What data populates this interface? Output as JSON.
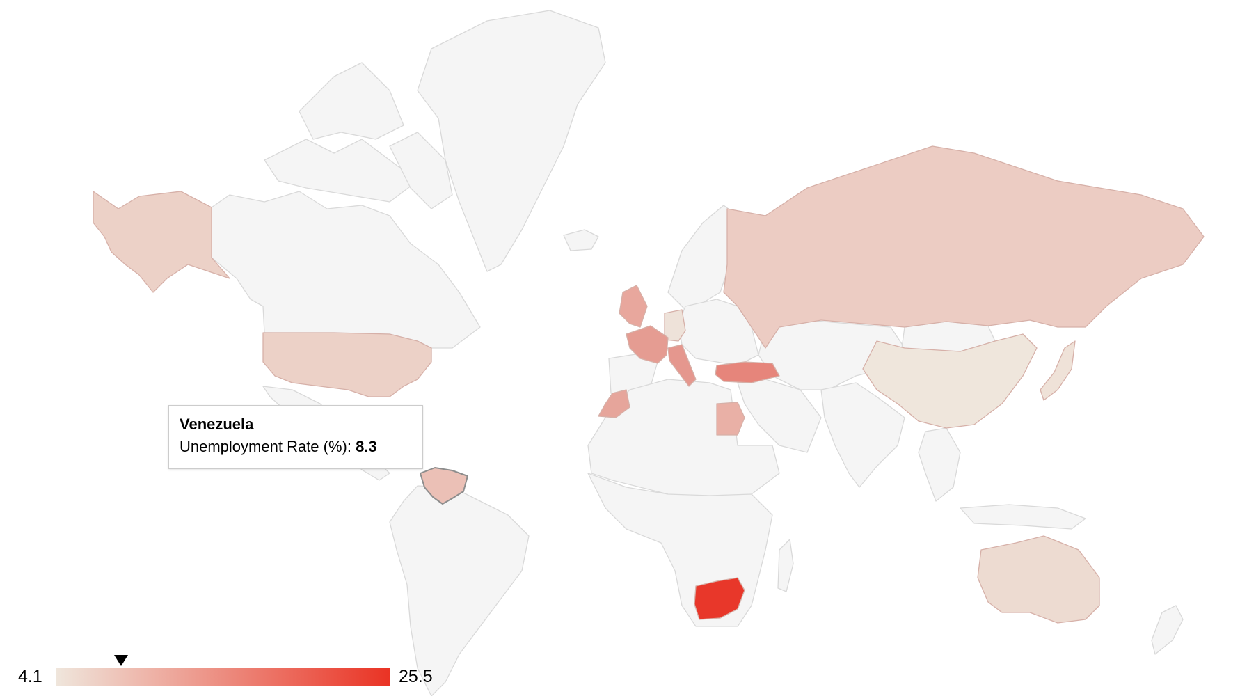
{
  "map": {
    "metric": "Unemployment Rate (%)",
    "no_data_color": "#f5f5f5",
    "border_color": "#d9d9d9",
    "color_min": "#efe6dc",
    "color_max": "#ea3324",
    "countries": [
      {
        "name": "South Africa",
        "color": "#e8372a"
      },
      {
        "name": "Turkey",
        "color": "#e6857b"
      },
      {
        "name": "Italy",
        "color": "#e5978e"
      },
      {
        "name": "France",
        "color": "#e59c92"
      },
      {
        "name": "Morocco",
        "color": "#e6a59b"
      },
      {
        "name": "Egypt",
        "color": "#e9b0a6"
      },
      {
        "name": "United Kingdom",
        "color": "#e8a79d"
      },
      {
        "name": "Venezuela",
        "color": "#ebc0b6"
      },
      {
        "name": "Russia",
        "color": "#ecccc3"
      },
      {
        "name": "United States",
        "color": "#ecd1c7"
      },
      {
        "name": "Alaska",
        "color": "#ecd1c7"
      },
      {
        "name": "Australia",
        "color": "#eddbd1"
      },
      {
        "name": "Germany",
        "color": "#eee2d9"
      },
      {
        "name": "China",
        "color": "#efe6dc"
      },
      {
        "name": "Japan",
        "color": "#efe2d8"
      }
    ]
  },
  "tooltip": {
    "country": "Venezuela",
    "label": "Unemployment Rate (%):",
    "value": "8.3"
  },
  "legend": {
    "min_label": "4.1",
    "max_label": "25.5",
    "min": 4.1,
    "max": 25.5,
    "marker_value": 8.3
  }
}
